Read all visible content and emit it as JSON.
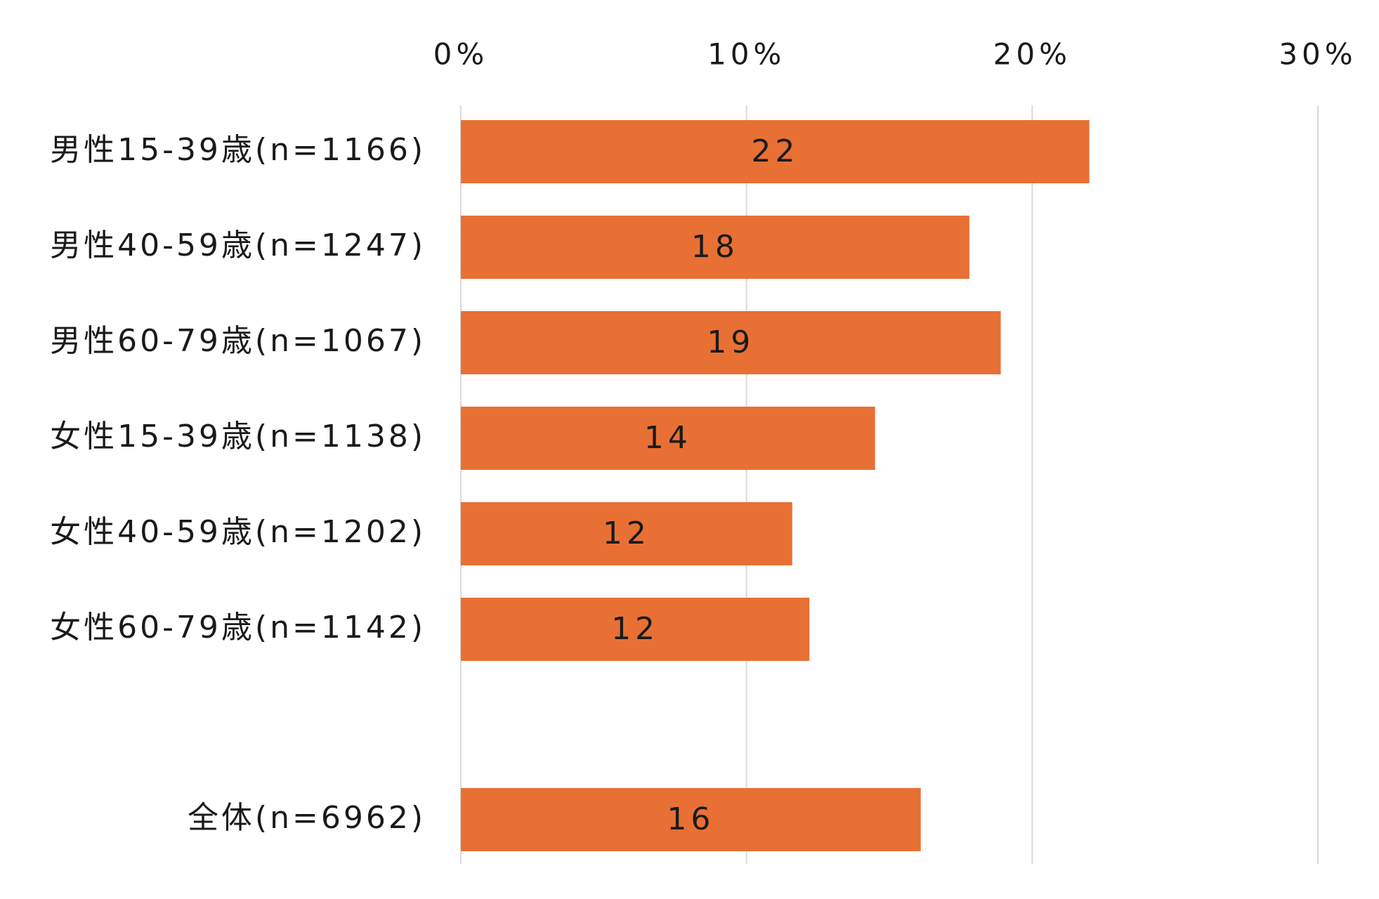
{
  "chart_data": {
    "type": "bar",
    "orientation": "horizontal",
    "categories": [
      "男性15-39歳(n=1166)",
      "男性40-59歳(n=1247)",
      "男性60-79歳(n=1067)",
      "女性15-39歳(n=1138)",
      "女性40-59歳(n=1202)",
      "女性60-79歳(n=1142)",
      "全体(n=6962)"
    ],
    "values": [
      22.0,
      17.8,
      18.9,
      14.5,
      11.6,
      12.2,
      16.1
    ],
    "data_labels": [
      "22",
      "18",
      "19",
      "14",
      "12",
      "12",
      "16"
    ],
    "xlim": [
      0,
      30
    ],
    "x_ticks": [
      0,
      10,
      20,
      30
    ],
    "x_tick_labels": [
      "0%",
      "10%",
      "20%",
      "30%"
    ],
    "x_axis_position": "top",
    "grid": true,
    "legend": "none",
    "bar_color": "#E87034",
    "grid_color": "#D9D9D9",
    "title": "",
    "xlabel": "",
    "ylabel": ""
  }
}
